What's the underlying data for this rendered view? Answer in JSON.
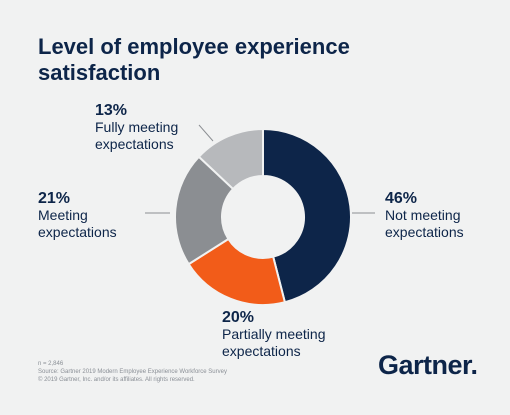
{
  "chart_data": {
    "type": "donut",
    "title": [
      "Level of employee experience",
      "satisfaction"
    ],
    "slices": [
      {
        "pct_label": "46%",
        "value": 46,
        "label": [
          "Not meeting",
          "expectations"
        ],
        "color": "#0d2549"
      },
      {
        "pct_label": "20%",
        "value": 20,
        "label": [
          "Partially meeting",
          "expectations"
        ],
        "color": "#f25c19"
      },
      {
        "pct_label": "21%",
        "value": 21,
        "label": [
          "Meeting",
          "expectations"
        ],
        "color": "#8b8e92"
      },
      {
        "pct_label": "13%",
        "value": 13,
        "label": [
          "Fully meeting",
          "expectations"
        ],
        "color": "#b7b9bc"
      }
    ]
  },
  "footer": {
    "n": "n = 2,846",
    "source": "Source: Gartner 2019 Modern Employee Experience Workforce Survey",
    "copyright": "© 2019 Gartner, Inc. and/or its affiliates. All rights reserved."
  },
  "logo": {
    "text": "Gartner",
    "dot": "."
  }
}
